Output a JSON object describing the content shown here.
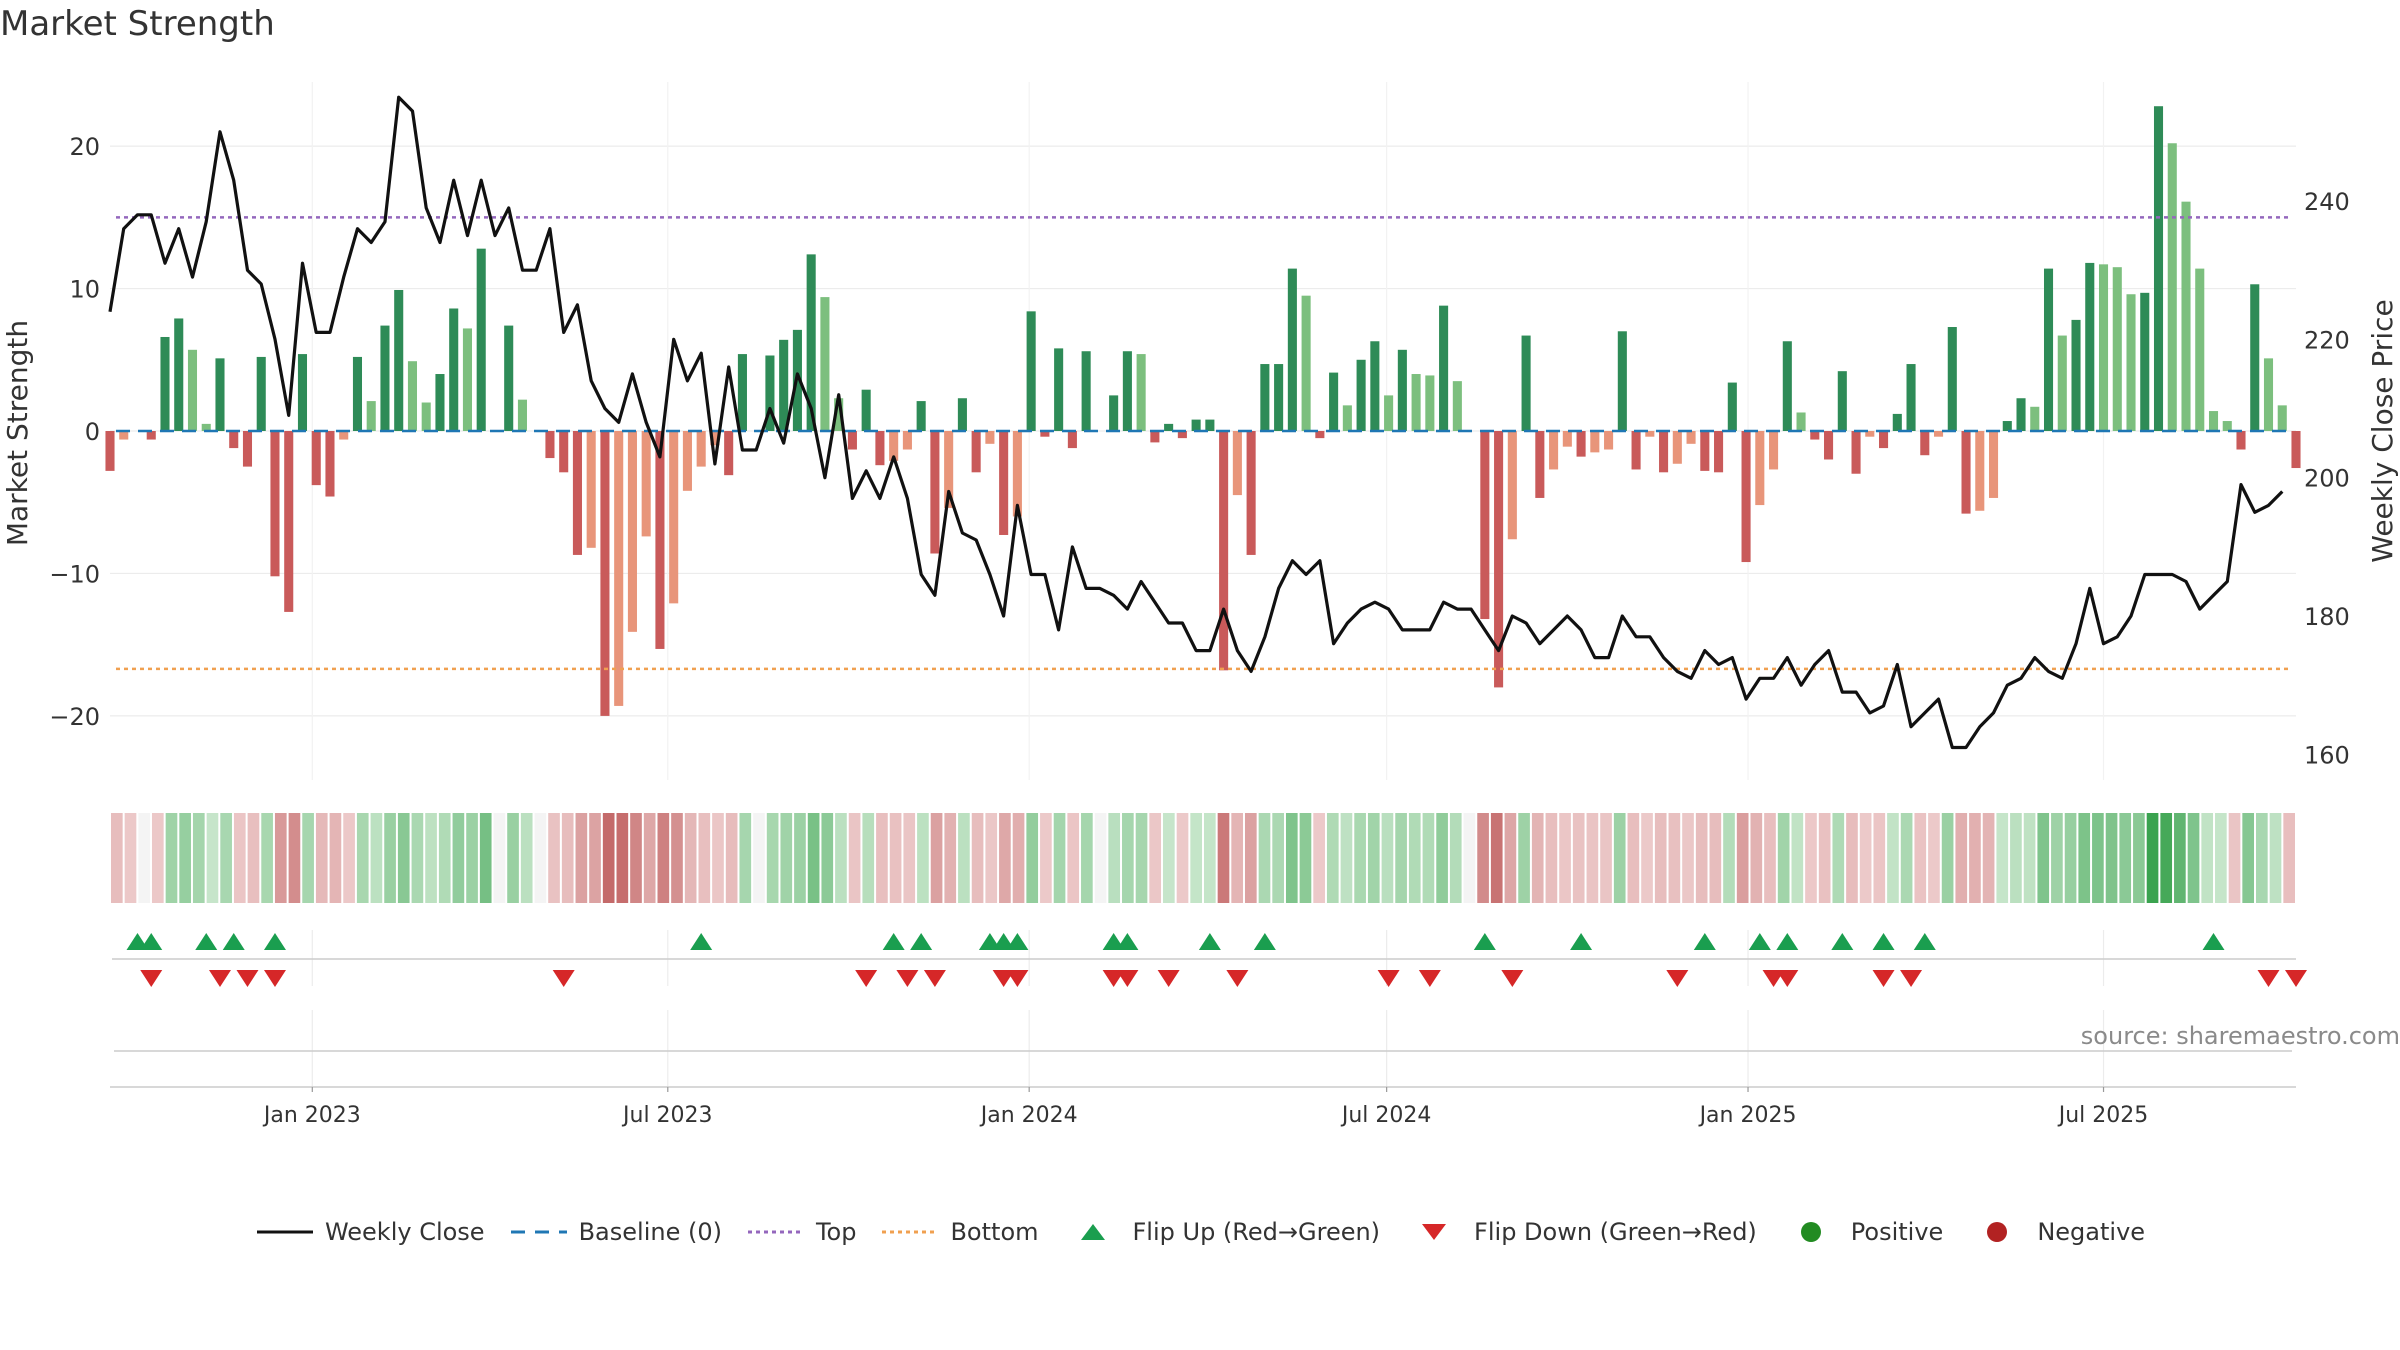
{
  "title": "Market Strength",
  "source_note": "source: sharemaestro.com",
  "colors": {
    "pos_dark": "#2e8b57",
    "pos_light": "#7cbf7e",
    "neg_dark": "#c95a5a",
    "neg_light": "#e8957a",
    "close": "#111111",
    "baseline": "#1f77b4",
    "top": "#9467bd",
    "bottom": "#f0a050",
    "flip_up": "#1a9e4f",
    "flip_down": "#d62728",
    "positive": "#228b22",
    "negative": "#b22222"
  },
  "legend": [
    {
      "key": "close",
      "label": "Weekly Close",
      "icon": "line-solid"
    },
    {
      "key": "baseline",
      "label": "Baseline (0)",
      "icon": "line-dashed"
    },
    {
      "key": "top",
      "label": "Top",
      "icon": "line-dotted"
    },
    {
      "key": "bottom",
      "label": "Bottom",
      "icon": "line-dotted"
    },
    {
      "key": "flip_up",
      "label": "Flip Up (Red→Green)",
      "icon": "triangle-up-icon"
    },
    {
      "key": "flip_down",
      "label": "Flip Down (Green→Red)",
      "icon": "triangle-down-icon"
    },
    {
      "key": "positive",
      "label": "Positive",
      "icon": "circle-icon"
    },
    {
      "key": "negative",
      "label": "Negative",
      "icon": "circle-icon"
    }
  ],
  "chart_data": {
    "type": "bar",
    "title": "Market Strength",
    "ylabel": "Market Strength",
    "ylabel_right": "Weekly Close Price",
    "ylim": [
      -24.5,
      24.5
    ],
    "ylim_right": [
      156.3,
      257.2
    ],
    "yticks": [
      -20,
      -10,
      0,
      10,
      20
    ],
    "yticks_right": [
      160,
      180,
      200,
      220,
      240
    ],
    "top_level": 15,
    "bottom_level": -16.7,
    "x_start": "2022-09-20",
    "x_end": "2025-10-07",
    "xticks": [
      {
        "date": "2023-01-01",
        "label": "Jan 2023"
      },
      {
        "date": "2023-07-01",
        "label": "Jul 2023"
      },
      {
        "date": "2024-01-01",
        "label": "Jan 2024"
      },
      {
        "date": "2024-07-01",
        "label": "Jul 2024"
      },
      {
        "date": "2025-01-01",
        "label": "Jan 2025"
      },
      {
        "date": "2025-07-01",
        "label": "Jul 2025"
      }
    ],
    "grid": true,
    "legend_position": "bottom",
    "series": [
      {
        "name": "Market Strength",
        "values": [
          -2.8,
          -0.6,
          0,
          -0.6,
          6.6,
          7.9,
          5.7,
          0.5,
          5.1,
          -1.2,
          -2.5,
          5.2,
          -10.2,
          -12.7,
          5.4,
          -3.8,
          -4.6,
          -0.6,
          5.2,
          2.1,
          7.4,
          9.9,
          4.9,
          2.0,
          4.0,
          8.6,
          7.2,
          12.8,
          0,
          7.4,
          2.2,
          0,
          -1.9,
          -2.9,
          -8.7,
          -8.2,
          -20.0,
          -19.3,
          -14.1,
          -7.4,
          -15.3,
          -12.1,
          -4.2,
          -2.5,
          -1.0,
          -3.1,
          5.4,
          0,
          5.3,
          6.4,
          7.1,
          12.4,
          9.4,
          2.3,
          -1.3,
          2.9,
          -2.4,
          -2.1,
          -1.3,
          2.1,
          -8.6,
          -5.4,
          2.3,
          -2.9,
          -0.9,
          -7.3,
          -6.0,
          8.4,
          -0.4,
          5.8,
          -1.2,
          5.6,
          0,
          2.5,
          5.6,
          5.4,
          -0.8,
          0.5,
          -0.5,
          0.8,
          0.8,
          -16.8,
          -4.5,
          -8.7,
          4.7,
          4.7,
          11.4,
          9.5,
          -0.5,
          4.1,
          1.8,
          5.0,
          6.3,
          2.5,
          5.7,
          4.0,
          3.9,
          8.8,
          3.5,
          0,
          -13.2,
          -18.0,
          -7.6,
          6.7,
          -4.7,
          -2.7,
          -1.1,
          -1.8,
          -1.5,
          -1.3,
          7.0,
          -2.7,
          -0.4,
          -2.9,
          -2.3,
          -0.9,
          -2.8,
          -2.9,
          3.4,
          -9.2,
          -5.2,
          -2.7,
          6.3,
          1.3,
          -0.6,
          -2.0,
          4.2,
          -3.0,
          -0.4,
          -1.2,
          1.2,
          4.7,
          -1.7,
          -0.4,
          7.3,
          -5.8,
          -5.6,
          -4.7,
          0.7,
          2.3,
          1.7,
          11.4,
          6.7,
          7.8,
          11.8,
          11.7,
          11.5,
          9.6,
          9.7,
          22.8,
          20.2,
          16.1,
          11.4,
          1.4,
          0.7,
          -1.3,
          10.3,
          5.1,
          1.8,
          -2.6
        ]
      },
      {
        "name": "Weekly Close",
        "values": [
          224,
          236,
          238,
          238,
          231,
          236,
          229,
          237,
          250,
          243,
          230,
          228,
          220,
          209,
          231,
          221,
          221,
          229,
          236,
          234,
          237,
          255,
          253,
          239,
          234,
          243,
          235,
          243,
          235,
          239,
          230,
          230,
          236,
          221,
          225,
          214,
          210,
          208,
          215,
          208,
          203,
          220,
          214,
          218,
          202,
          216,
          204,
          204,
          210,
          205,
          215,
          210,
          200,
          212,
          197,
          201,
          197,
          203,
          197,
          186,
          183,
          198,
          192,
          191,
          186,
          180,
          196,
          186,
          186,
          178,
          190,
          184,
          184,
          183,
          181,
          185,
          182,
          179,
          179,
          175,
          175,
          181,
          175,
          172,
          177,
          184,
          188,
          186,
          188,
          176,
          179,
          181,
          182,
          181,
          178,
          178,
          178,
          182,
          181,
          181,
          178,
          175,
          180,
          179,
          176,
          178,
          180,
          178,
          174,
          174,
          180,
          177,
          177,
          174,
          172,
          171,
          175,
          173,
          174,
          168,
          171,
          171,
          174,
          170,
          173,
          175,
          169,
          169,
          166,
          167,
          173,
          164,
          166,
          168,
          161,
          161,
          164,
          166,
          170,
          171,
          174,
          172,
          171,
          176,
          184,
          176,
          177,
          180,
          186,
          186,
          186,
          185,
          181,
          183,
          185,
          199,
          195,
          196,
          198
        ]
      }
    ],
    "flip_up_dates": [
      "2022-10-04",
      "2022-10-11",
      "2022-11-08",
      "2022-11-22",
      "2022-12-13",
      "2023-07-18",
      "2023-10-24",
      "2023-11-07",
      "2023-12-12",
      "2023-12-19",
      "2023-12-26",
      "2024-02-13",
      "2024-02-20",
      "2024-04-02",
      "2024-04-30",
      "2024-08-20",
      "2024-10-08",
      "2024-12-10",
      "2025-01-07",
      "2025-01-21",
      "2025-02-18",
      "2025-03-11",
      "2025-04-01",
      "2025-08-26"
    ],
    "flip_down_dates": [
      "2022-10-11",
      "2022-11-15",
      "2022-11-29",
      "2022-12-13",
      "2023-05-09",
      "2023-10-10",
      "2023-10-31",
      "2023-11-14",
      "2023-12-19",
      "2023-12-26",
      "2024-02-13",
      "2024-02-20",
      "2024-03-12",
      "2024-04-16",
      "2024-07-02",
      "2024-07-23",
      "2024-09-03",
      "2024-11-26",
      "2025-01-14",
      "2025-01-21",
      "2025-03-11",
      "2025-03-25",
      "2025-09-23",
      "2025-10-07"
    ],
    "strength_band": "weekly colour band of Market Strength (green = positive, red = negative, darker = stronger)"
  }
}
